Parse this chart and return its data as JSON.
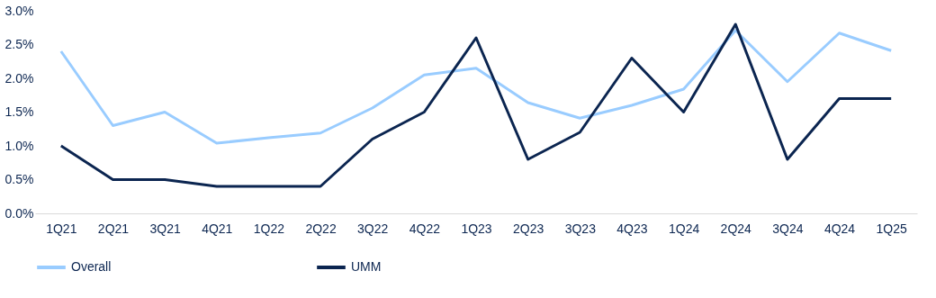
{
  "chart_data": {
    "type": "line",
    "categories": [
      "1Q21",
      "2Q21",
      "3Q21",
      "4Q21",
      "1Q22",
      "2Q22",
      "3Q22",
      "4Q22",
      "1Q23",
      "2Q23",
      "3Q23",
      "4Q23",
      "1Q24",
      "2Q24",
      "3Q24",
      "4Q24",
      "1Q25"
    ],
    "series": [
      {
        "name": "Overall",
        "color": "#99ccff",
        "values": [
          2.4,
          1.3,
          1.5,
          1.04,
          1.12,
          1.19,
          1.56,
          2.05,
          2.15,
          1.64,
          1.41,
          1.6,
          1.84,
          2.71,
          1.95,
          2.67,
          2.41
        ]
      },
      {
        "name": "UMM",
        "color": "#0b2550",
        "values": [
          1.0,
          0.5,
          0.5,
          0.4,
          0.4,
          0.4,
          1.1,
          1.5,
          2.6,
          0.8,
          1.2,
          2.3,
          1.5,
          2.8,
          0.8,
          1.7,
          1.7
        ]
      }
    ],
    "ylim": [
      0,
      3
    ],
    "yticks": [
      {
        "value": 0,
        "label": "0.0%"
      },
      {
        "value": 0.5,
        "label": "0.5%"
      },
      {
        "value": 1,
        "label": "1.0%"
      },
      {
        "value": 1.5,
        "label": "1.5%"
      },
      {
        "value": 2,
        "label": "2.0%"
      },
      {
        "value": 2.5,
        "label": "2.5%"
      },
      {
        "value": 3,
        "label": "3.0%"
      }
    ],
    "grid": false,
    "legend": "bottom",
    "marker": "none",
    "line_style": "solid"
  }
}
